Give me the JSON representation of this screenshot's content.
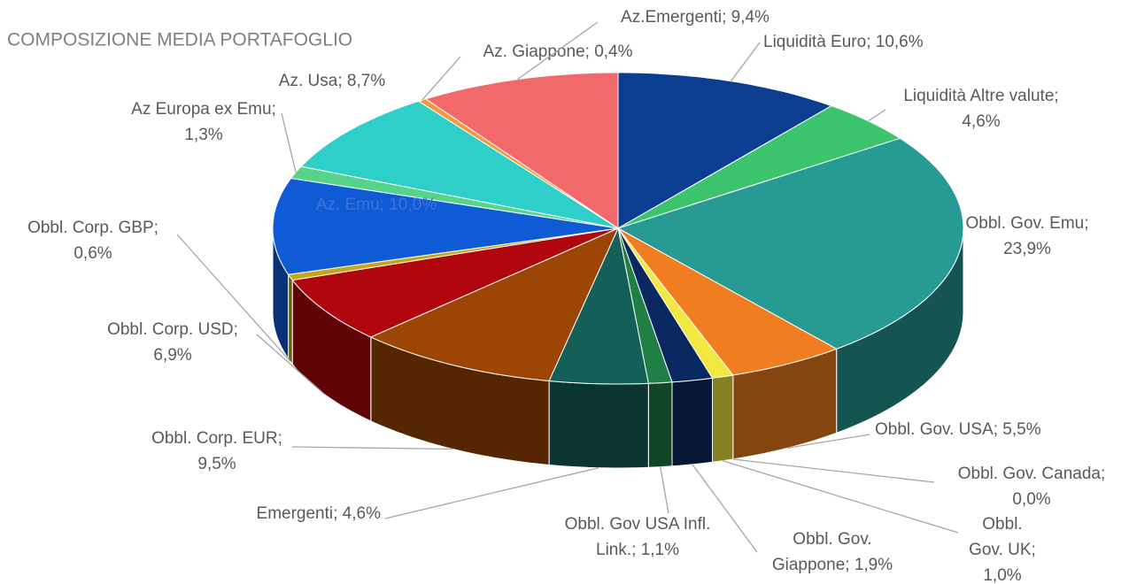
{
  "chart_data": {
    "type": "pie3d",
    "title": "COMPOSIZIONE MEDIA PORTAFOGLIO",
    "values": [
      10.6,
      4.6,
      23.9,
      5.5,
      0.0,
      1.0,
      1.9,
      1.1,
      4.6,
      9.5,
      6.9,
      0.6,
      10.0,
      1.3,
      8.7,
      0.4,
      9.4
    ],
    "value_labels": [
      [
        "Liquidità Euro; 10,6%"
      ],
      [
        "Liquidità Altre valute;",
        "4,6%"
      ],
      [
        "Obbl. Gov. Emu;",
        "23,9%"
      ],
      [
        "Obbl. Gov. USA; 5,5%"
      ],
      [
        "Obbl. Gov. Canada;",
        "0,0%"
      ],
      [
        "Obbl.",
        "Gov. UK;",
        "1,0%"
      ],
      [
        "Obbl. Gov.",
        "Giappone; 1,9%"
      ],
      [
        "Obbl. Gov USA Infl.",
        "Link.; 1,1%"
      ],
      [
        "Emergenti; 4,6%"
      ],
      [
        "Obbl. Corp. EUR;",
        "9,5%"
      ],
      [
        "Obbl. Corp. USD;",
        "6,9%"
      ],
      [
        "Obbl. Corp. GBP;",
        "0,6%"
      ],
      [
        "Az. Emu; 10,0%"
      ],
      [
        "Az Europa ex Emu;",
        "1,3%"
      ],
      [
        "Az. Usa; 8,7%"
      ],
      [
        "Az. Giappone; 0,4%"
      ],
      [
        "Az.Emergenti; 9,4%"
      ]
    ],
    "colors": [
      "#0b3d91",
      "#3cc46c",
      "#269a93",
      "#f07d1f",
      "#e0e0e0",
      "#f2e840",
      "#0a2860",
      "#1f7f44",
      "#146058",
      "#9c4505",
      "#b0070e",
      "#c9a516",
      "#0f5bd6",
      "#55d48a",
      "#2ecfc8",
      "#f39a3c",
      "#f2696c"
    ]
  }
}
